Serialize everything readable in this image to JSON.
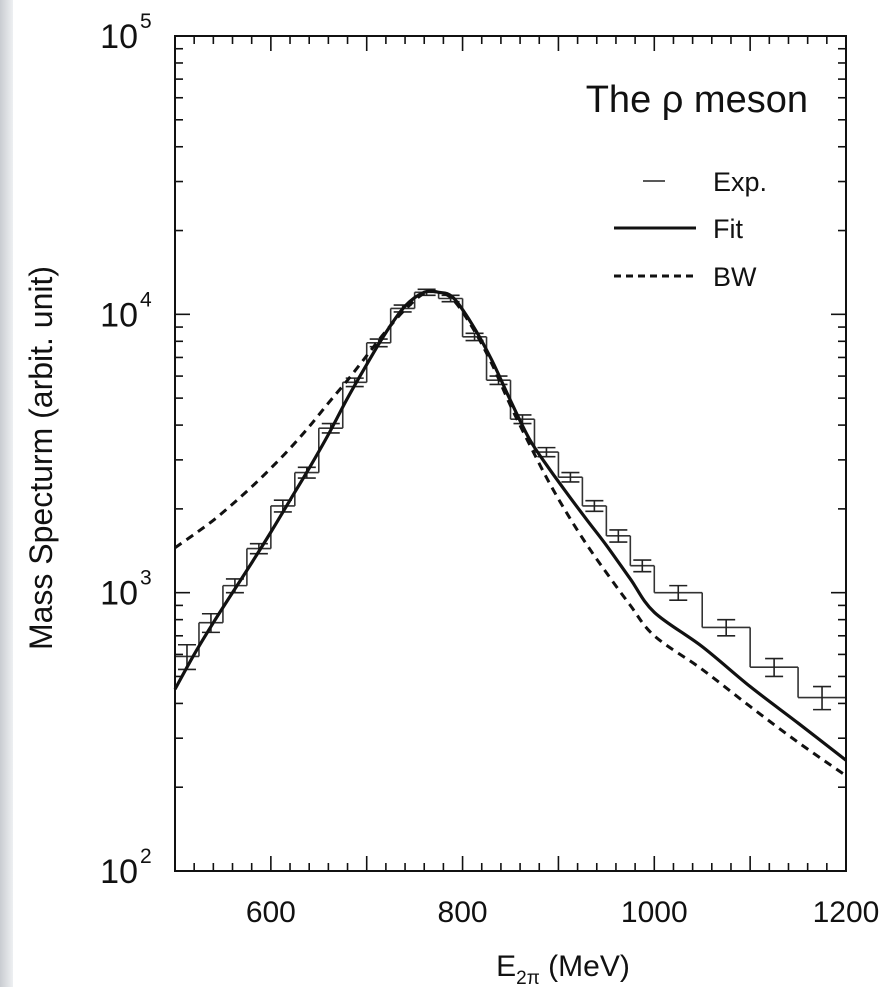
{
  "chart_data": {
    "type": "line",
    "title": "The ρ meson",
    "xlabel_main": "E",
    "xlabel_sub": "2π",
    "xlabel_unit": " (MeV)",
    "ylabel": "Mass Specturm (arbit. unit)",
    "xlim": [
      500,
      1200
    ],
    "ylim": [
      100,
      100000
    ],
    "yscale": "log",
    "x_ticks": [
      600,
      800,
      1000,
      1200
    ],
    "y_ticks": [
      {
        "base": "10",
        "exp": "2",
        "value": 100
      },
      {
        "base": "10",
        "exp": "3",
        "value": 1000
      },
      {
        "base": "10",
        "exp": "4",
        "value": 10000
      },
      {
        "base": "10",
        "exp": "5",
        "value": 100000
      }
    ],
    "legend": {
      "position": "top-right",
      "entries": [
        {
          "label": "Exp.",
          "style": "short-line"
        },
        {
          "label": "Fit",
          "style": "solid"
        },
        {
          "label": "BW",
          "style": "dashed"
        }
      ]
    },
    "series": [
      {
        "name": "Exp.",
        "kind": "histogram-with-errors",
        "bin_edges": [
          500,
          525,
          550,
          575,
          600,
          625,
          650,
          675,
          700,
          725,
          750,
          775,
          800,
          825,
          850,
          875,
          900,
          925,
          950,
          975,
          1000,
          1050,
          1100,
          1150,
          1200
        ],
        "values": [
          590,
          780,
          1060,
          1440,
          2050,
          2700,
          3900,
          5700,
          7900,
          10500,
          12000,
          11400,
          8300,
          5800,
          4200,
          3200,
          2600,
          2050,
          1600,
          1250,
          1000,
          750,
          540,
          420
        ],
        "errors": [
          60,
          60,
          60,
          60,
          100,
          120,
          150,
          200,
          250,
          300,
          300,
          300,
          250,
          200,
          150,
          120,
          100,
          90,
          80,
          60,
          60,
          50,
          40,
          40
        ]
      },
      {
        "name": "Fit",
        "x": [
          500,
          520,
          540,
          560,
          580,
          600,
          620,
          640,
          660,
          680,
          700,
          720,
          740,
          760,
          775,
          790,
          810,
          830,
          850,
          870,
          890,
          910,
          930,
          950,
          975,
          1000,
          1050,
          1100,
          1150,
          1200
        ],
        "y": [
          450,
          600,
          780,
          1000,
          1280,
          1650,
          2150,
          2800,
          3700,
          5000,
          6600,
          8600,
          10700,
          12000,
          12000,
          11500,
          9200,
          6900,
          4900,
          3550,
          2800,
          2250,
          1820,
          1480,
          1120,
          850,
          640,
          460,
          340,
          250
        ]
      },
      {
        "name": "BW",
        "x": [
          500,
          520,
          540,
          560,
          580,
          600,
          620,
          640,
          660,
          680,
          700,
          720,
          740,
          760,
          775,
          790,
          810,
          830,
          850,
          870,
          890,
          910,
          930,
          950,
          975,
          1000,
          1050,
          1100,
          1150,
          1200
        ],
        "y": [
          1450,
          1620,
          1820,
          2080,
          2400,
          2800,
          3300,
          3950,
          4800,
          5800,
          7100,
          8700,
          10400,
          11900,
          12000,
          11300,
          9000,
          6700,
          4700,
          3400,
          2500,
          1900,
          1480,
          1180,
          900,
          700,
          530,
          390,
          290,
          220
        ]
      }
    ]
  }
}
